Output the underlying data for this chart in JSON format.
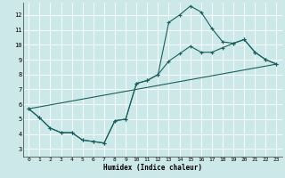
{
  "xlabel": "Humidex (Indice chaleur)",
  "bg_color": "#cce8e8",
  "line_color": "#1a5f5f",
  "grid_color": "#aad4d4",
  "xlim": [
    -0.5,
    23.5
  ],
  "ylim": [
    2.5,
    12.8
  ],
  "yticks": [
    3,
    4,
    5,
    6,
    7,
    8,
    9,
    10,
    11,
    12
  ],
  "xticks": [
    0,
    1,
    2,
    3,
    4,
    5,
    6,
    7,
    8,
    9,
    10,
    11,
    12,
    13,
    14,
    15,
    16,
    17,
    18,
    19,
    20,
    21,
    22,
    23
  ],
  "curve1_x": [
    0,
    1,
    2,
    3,
    4,
    5,
    6,
    7,
    8,
    9,
    10,
    11,
    12,
    13,
    14,
    15,
    16,
    17,
    18,
    19,
    20,
    21,
    22,
    23
  ],
  "curve1_y": [
    5.7,
    5.1,
    4.4,
    4.1,
    4.1,
    3.6,
    3.5,
    3.4,
    4.9,
    5.0,
    7.4,
    7.6,
    8.0,
    11.5,
    12.0,
    12.6,
    12.2,
    11.1,
    10.2,
    10.1,
    10.35,
    9.5,
    9.0,
    8.7
  ],
  "curve2_x": [
    0,
    1,
    2,
    3,
    4,
    5,
    6,
    7,
    8,
    9,
    10,
    11,
    12,
    13,
    14,
    15,
    16,
    17,
    18,
    19,
    20,
    21,
    22,
    23
  ],
  "curve2_y": [
    5.7,
    5.1,
    4.4,
    4.1,
    4.1,
    3.6,
    3.5,
    3.4,
    4.9,
    5.0,
    7.4,
    7.6,
    8.0,
    8.9,
    9.4,
    9.9,
    9.5,
    9.5,
    9.8,
    10.1,
    10.35,
    9.5,
    9.0,
    8.7
  ],
  "curve3_x": [
    0,
    23
  ],
  "curve3_y": [
    5.7,
    8.7
  ]
}
